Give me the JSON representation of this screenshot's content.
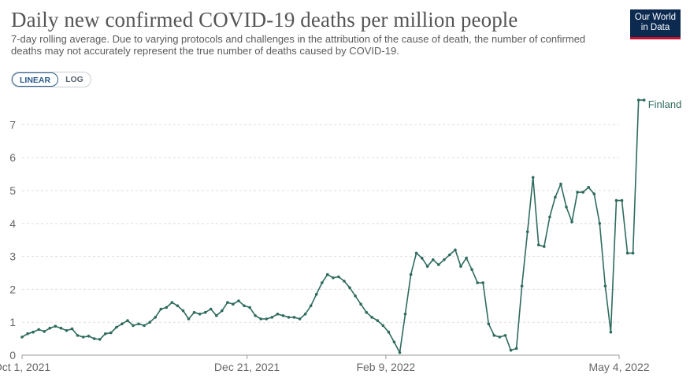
{
  "header": {
    "title": "Daily new confirmed COVID-19 deaths per million people",
    "subtitle": "7-day rolling average. Due to varying protocols and challenges in the attribution of the cause of death, the number of confirmed deaths may not accurately represent the true number of deaths caused by COVID-19."
  },
  "logo": {
    "line1": "Our World",
    "line2": "in Data",
    "color": "#0c2a50",
    "accent": "#c8102e"
  },
  "scale_toggle": {
    "linear": "LINEAR",
    "log": "LOG",
    "selected": "LINEAR"
  },
  "chart_data": {
    "type": "line",
    "x_ticks": [
      "Oct 1, 2021",
      "Dec 21, 2021",
      "Feb 9, 2022",
      "May 4, 2022"
    ],
    "x_tick_dates": [
      "2021-10-01",
      "2021-12-21",
      "2022-02-09",
      "2022-05-04"
    ],
    "y_ticks": [
      "0",
      "1",
      "2",
      "3",
      "4",
      "5",
      "6",
      "7"
    ],
    "ylim": [
      0,
      7.8
    ],
    "xlim": [
      "2021-10-01",
      "2022-05-04"
    ],
    "grid": "horizontal dashed",
    "series": [
      {
        "name": "Finland",
        "color": "#2e6b5e",
        "points": [
          [
            "2021-10-01",
            0.55
          ],
          [
            "2021-10-03",
            0.65
          ],
          [
            "2021-10-05",
            0.7
          ],
          [
            "2021-10-07",
            0.78
          ],
          [
            "2021-10-09",
            0.72
          ],
          [
            "2021-10-11",
            0.82
          ],
          [
            "2021-10-13",
            0.88
          ],
          [
            "2021-10-15",
            0.82
          ],
          [
            "2021-10-17",
            0.75
          ],
          [
            "2021-10-19",
            0.8
          ],
          [
            "2021-10-21",
            0.6
          ],
          [
            "2021-10-23",
            0.55
          ],
          [
            "2021-10-25",
            0.58
          ],
          [
            "2021-10-27",
            0.5
          ],
          [
            "2021-10-29",
            0.48
          ],
          [
            "2021-10-31",
            0.65
          ],
          [
            "2021-11-02",
            0.68
          ],
          [
            "2021-11-04",
            0.85
          ],
          [
            "2021-11-06",
            0.95
          ],
          [
            "2021-11-08",
            1.05
          ],
          [
            "2021-11-10",
            0.9
          ],
          [
            "2021-11-12",
            0.95
          ],
          [
            "2021-11-14",
            0.9
          ],
          [
            "2021-11-16",
            1.0
          ],
          [
            "2021-11-18",
            1.15
          ],
          [
            "2021-11-20",
            1.4
          ],
          [
            "2021-11-22",
            1.45
          ],
          [
            "2021-11-24",
            1.6
          ],
          [
            "2021-11-26",
            1.5
          ],
          [
            "2021-11-28",
            1.35
          ],
          [
            "2021-11-30",
            1.1
          ],
          [
            "2021-12-02",
            1.3
          ],
          [
            "2021-12-04",
            1.25
          ],
          [
            "2021-12-06",
            1.3
          ],
          [
            "2021-12-08",
            1.4
          ],
          [
            "2021-12-10",
            1.2
          ],
          [
            "2021-12-12",
            1.35
          ],
          [
            "2021-12-14",
            1.6
          ],
          [
            "2021-12-16",
            1.55
          ],
          [
            "2021-12-18",
            1.65
          ],
          [
            "2021-12-20",
            1.5
          ],
          [
            "2021-12-22",
            1.45
          ],
          [
            "2021-12-24",
            1.2
          ],
          [
            "2021-12-26",
            1.1
          ],
          [
            "2021-12-28",
            1.1
          ],
          [
            "2021-12-30",
            1.15
          ],
          [
            "2022-01-01",
            1.25
          ],
          [
            "2022-01-03",
            1.2
          ],
          [
            "2022-01-05",
            1.15
          ],
          [
            "2022-01-07",
            1.15
          ],
          [
            "2022-01-09",
            1.1
          ],
          [
            "2022-01-11",
            1.25
          ],
          [
            "2022-01-13",
            1.5
          ],
          [
            "2022-01-15",
            1.85
          ],
          [
            "2022-01-17",
            2.2
          ],
          [
            "2022-01-19",
            2.45
          ],
          [
            "2022-01-21",
            2.35
          ],
          [
            "2022-01-23",
            2.38
          ],
          [
            "2022-01-25",
            2.25
          ],
          [
            "2022-01-27",
            2.05
          ],
          [
            "2022-01-29",
            1.8
          ],
          [
            "2022-01-31",
            1.55
          ],
          [
            "2022-02-02",
            1.3
          ],
          [
            "2022-02-04",
            1.15
          ],
          [
            "2022-02-06",
            1.05
          ],
          [
            "2022-02-08",
            0.9
          ],
          [
            "2022-02-10",
            0.7
          ],
          [
            "2022-02-12",
            0.4
          ],
          [
            "2022-02-14",
            0.08
          ],
          [
            "2022-02-16",
            1.25
          ],
          [
            "2022-02-18",
            2.45
          ],
          [
            "2022-02-20",
            3.1
          ],
          [
            "2022-02-22",
            2.95
          ],
          [
            "2022-02-24",
            2.7
          ],
          [
            "2022-02-26",
            2.9
          ],
          [
            "2022-02-28",
            2.75
          ],
          [
            "2022-03-02",
            2.9
          ],
          [
            "2022-03-04",
            3.05
          ],
          [
            "2022-03-06",
            3.2
          ],
          [
            "2022-03-08",
            2.7
          ],
          [
            "2022-03-10",
            2.95
          ],
          [
            "2022-03-12",
            2.6
          ],
          [
            "2022-03-14",
            2.2
          ],
          [
            "2022-03-16",
            2.2
          ],
          [
            "2022-03-18",
            0.95
          ],
          [
            "2022-03-20",
            0.6
          ],
          [
            "2022-03-22",
            0.55
          ],
          [
            "2022-03-24",
            0.6
          ],
          [
            "2022-03-26",
            0.15
          ],
          [
            "2022-03-28",
            0.2
          ],
          [
            "2022-03-30",
            2.1
          ],
          [
            "2022-04-01",
            3.75
          ],
          [
            "2022-04-03",
            5.4
          ],
          [
            "2022-04-05",
            3.35
          ],
          [
            "2022-04-07",
            3.3
          ],
          [
            "2022-04-09",
            4.2
          ],
          [
            "2022-04-11",
            4.8
          ],
          [
            "2022-04-13",
            5.2
          ],
          [
            "2022-04-15",
            4.5
          ],
          [
            "2022-04-17",
            4.05
          ],
          [
            "2022-04-19",
            4.95
          ],
          [
            "2022-04-21",
            4.95
          ],
          [
            "2022-04-23",
            5.1
          ],
          [
            "2022-04-25",
            4.9
          ],
          [
            "2022-04-27",
            4.0
          ],
          [
            "2022-04-29",
            2.1
          ],
          [
            "2022-05-01",
            0.7
          ],
          [
            "2022-05-03",
            4.7
          ],
          [
            "2022-05-05",
            4.7
          ],
          [
            "2022-05-07",
            3.1
          ],
          [
            "2022-05-09",
            3.1
          ],
          [
            "2022-05-11",
            7.75
          ],
          [
            "2022-05-13",
            7.75
          ]
        ]
      }
    ]
  }
}
